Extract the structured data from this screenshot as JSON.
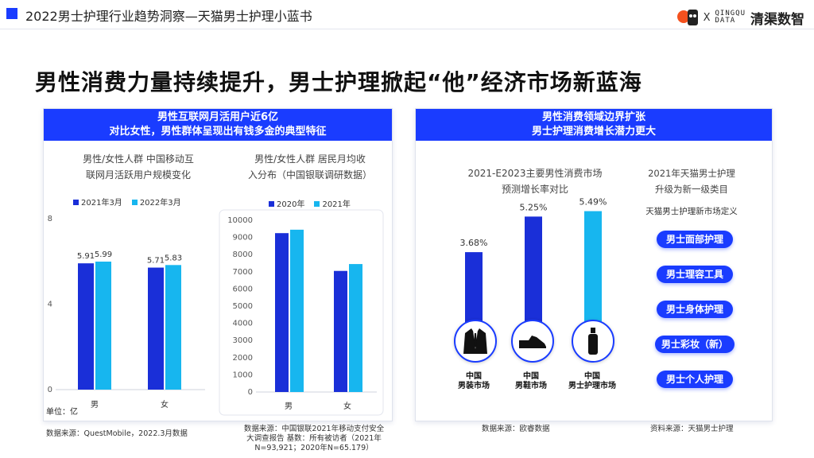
{
  "header": {
    "title": "2022男士护理行业趋势洞察—天猫男士护理小蓝书",
    "logo_x": "X",
    "logo_cq_line1": "QINGQU",
    "logo_cq_line2": "DATA",
    "logo_qq": "清渠数智",
    "accent": "#1a3cff"
  },
  "headline": "男性消费力量持续提升，男士护理掀起“他”经济市场新蓝海",
  "left_panel": {
    "bar_line1": "男性互联网月活用户近6亿",
    "bar_line2": "对比女性，男性群体呈现出有钱多金的典型特征",
    "source1": "数据来源：QuestMobile，2022.3月数据",
    "source2_line1": "数据来源：中国银联2021年移动支付安全",
    "source2_line2": "大调查报告  基数：所有被访者（2021年",
    "source2_line3": "N=93,921；2020年N=65.179）"
  },
  "right_panel": {
    "bar_line1": "男性消费领域边界扩张",
    "bar_line2": "男士护理消费增长潜力更大",
    "category_title_line1": "2021年天猫男士护理",
    "category_title_line2": "升级为新一级类目",
    "definition_label": "天猫男士护理新市场定义",
    "pills": [
      "男士面部护理",
      "男士理容工具",
      "男士身体护理",
      "男士彩妆（新）",
      "男士个人护理"
    ],
    "icons": [
      "suit-icon",
      "shoe-icon",
      "bottle-icon"
    ],
    "markets": [
      {
        "line1": "中国",
        "line2": "男装市场"
      },
      {
        "line1": "中国",
        "line2": "男鞋市场"
      },
      {
        "line1": "中国",
        "line2": "男士护理市场"
      }
    ],
    "source_left": "数据来源：欧睿数据",
    "source_right": "资料来源：天猫男士护理"
  },
  "chart_data": [
    {
      "type": "bar",
      "title_line1": "男性/女性人群 中国移动互",
      "title_line2": "联网月活跃用户规模变化",
      "categories": [
        "男",
        "女"
      ],
      "series": [
        {
          "name": "2021年3月",
          "values": [
            5.91,
            5.71
          ],
          "color": "#1a2fd8"
        },
        {
          "name": "2022年3月",
          "values": [
            5.99,
            5.83
          ],
          "color": "#17b6ef"
        }
      ],
      "yticks": [
        0,
        4,
        8
      ],
      "ylim": [
        0,
        8
      ],
      "unit_label": "单位：亿"
    },
    {
      "type": "bar",
      "title_line1": "男性/女性人群 居民月均收",
      "title_line2": "入分布（中国银联调研数据）",
      "categories": [
        "男",
        "女"
      ],
      "series": [
        {
          "name": "2020年",
          "values": [
            9250,
            7050
          ],
          "color": "#1a2fd8"
        },
        {
          "name": "2021年",
          "values": [
            9450,
            7450
          ],
          "color": "#17b6ef"
        }
      ],
      "yticks": [
        0,
        1000,
        2000,
        3000,
        4000,
        5000,
        6000,
        7000,
        8000,
        9000,
        10000
      ],
      "ylim": [
        0,
        10000
      ]
    },
    {
      "type": "bar",
      "title_line1": "2021-E2023主要男性消费市场",
      "title_line2": "预测增长率对比",
      "categories": [
        "中国男装市场",
        "中国男鞋市场",
        "中国男士护理市场"
      ],
      "values": [
        3.68,
        5.25,
        5.49
      ],
      "labels": [
        "3.68%",
        "5.25%",
        "5.49%"
      ],
      "colors": [
        "#1a2fd8",
        "#1a2fd8",
        "#17b6ef"
      ],
      "ylim": [
        0,
        6
      ]
    }
  ]
}
